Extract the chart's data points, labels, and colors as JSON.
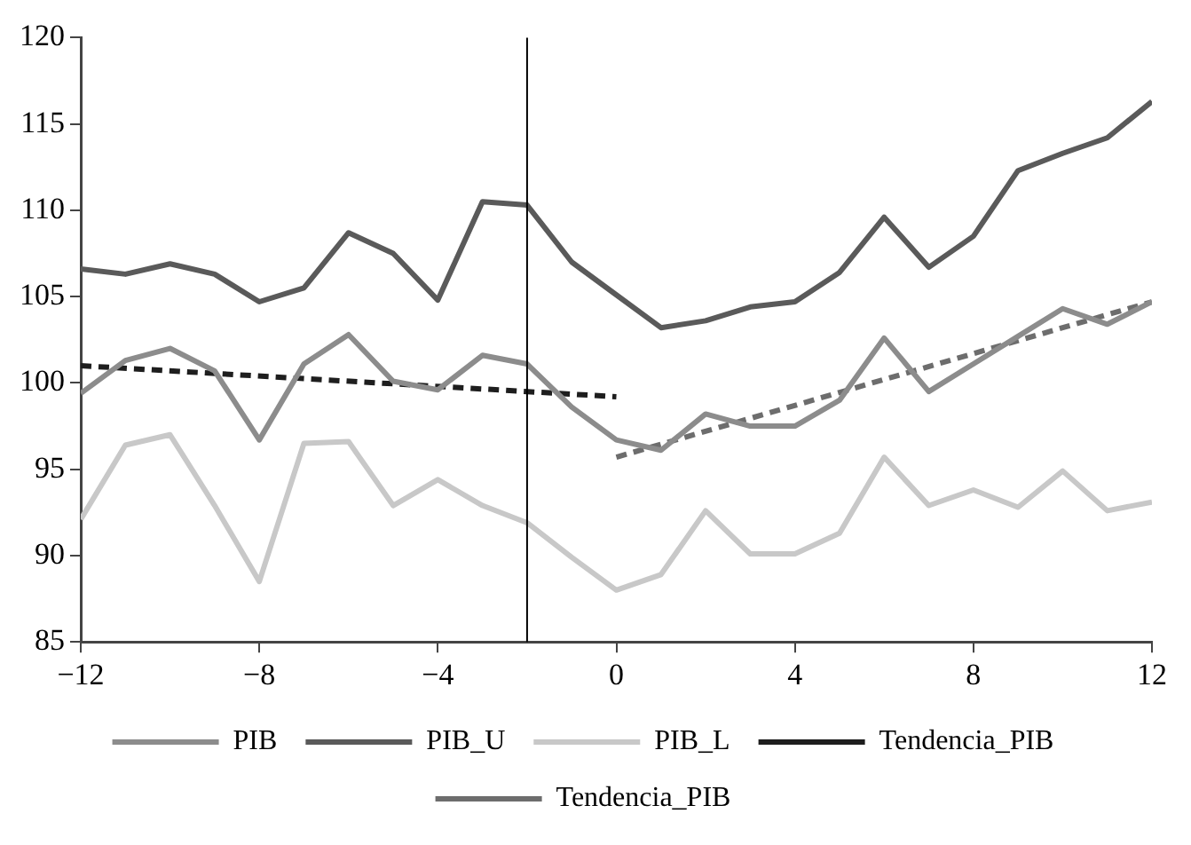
{
  "chart_data": {
    "type": "line",
    "x": [
      -12,
      -11,
      -10,
      -9,
      -8,
      -7,
      -6,
      -5,
      -4,
      -3,
      -2,
      -1,
      0,
      1,
      2,
      3,
      4,
      5,
      6,
      7,
      8,
      9,
      10,
      11,
      12
    ],
    "series": [
      {
        "name": "PIB",
        "color": "#8c8c8c",
        "values": [
          99.4,
          101.3,
          102.0,
          100.7,
          96.7,
          101.1,
          102.8,
          100.1,
          99.6,
          101.6,
          101.1,
          98.6,
          96.7,
          96.1,
          98.2,
          97.5,
          97.5,
          99.0,
          102.6,
          99.5,
          101.1,
          102.7,
          104.3,
          103.4,
          104.7
        ]
      },
      {
        "name": "PIB_U",
        "color": "#5a5a5a",
        "values": [
          106.6,
          106.3,
          106.9,
          106.3,
          104.7,
          105.5,
          108.7,
          107.5,
          104.8,
          110.5,
          110.3,
          107.0,
          105.1,
          103.2,
          103.6,
          104.4,
          104.7,
          106.4,
          109.6,
          106.7,
          108.5,
          112.3,
          113.3,
          114.2,
          116.3
        ]
      },
      {
        "name": "PIB_L",
        "color": "#c8c8c8",
        "values": [
          92.1,
          96.4,
          97.0,
          92.9,
          88.5,
          96.5,
          96.6,
          92.9,
          94.4,
          92.9,
          91.9,
          89.9,
          88.0,
          88.9,
          92.6,
          90.1,
          90.1,
          91.3,
          95.7,
          92.9,
          93.8,
          92.8,
          94.9,
          92.6,
          93.1
        ]
      },
      {
        "name": "Tendencia_PIB",
        "color": "#1e1e1e",
        "line_style": "dashed",
        "x": [
          -12,
          0
        ],
        "values": [
          101.0,
          99.2
        ]
      },
      {
        "name": "Tendencia_PIB",
        "color": "#6d6d6d",
        "line_style": "dashed",
        "x": [
          0,
          12
        ],
        "values": [
          95.7,
          104.7
        ]
      }
    ],
    "xlim": [
      -12,
      12
    ],
    "xticks": [
      -12,
      -8,
      -4,
      0,
      4,
      8,
      12
    ],
    "ylim": [
      85,
      120
    ],
    "yticks": [
      85,
      90,
      95,
      100,
      105,
      110,
      115,
      120
    ],
    "ref_lines": [
      {
        "axis": "x",
        "value": -2,
        "color": "#000000"
      }
    ],
    "grid": false,
    "legend": "bottom",
    "marker": "none",
    "line_style": "solid"
  }
}
